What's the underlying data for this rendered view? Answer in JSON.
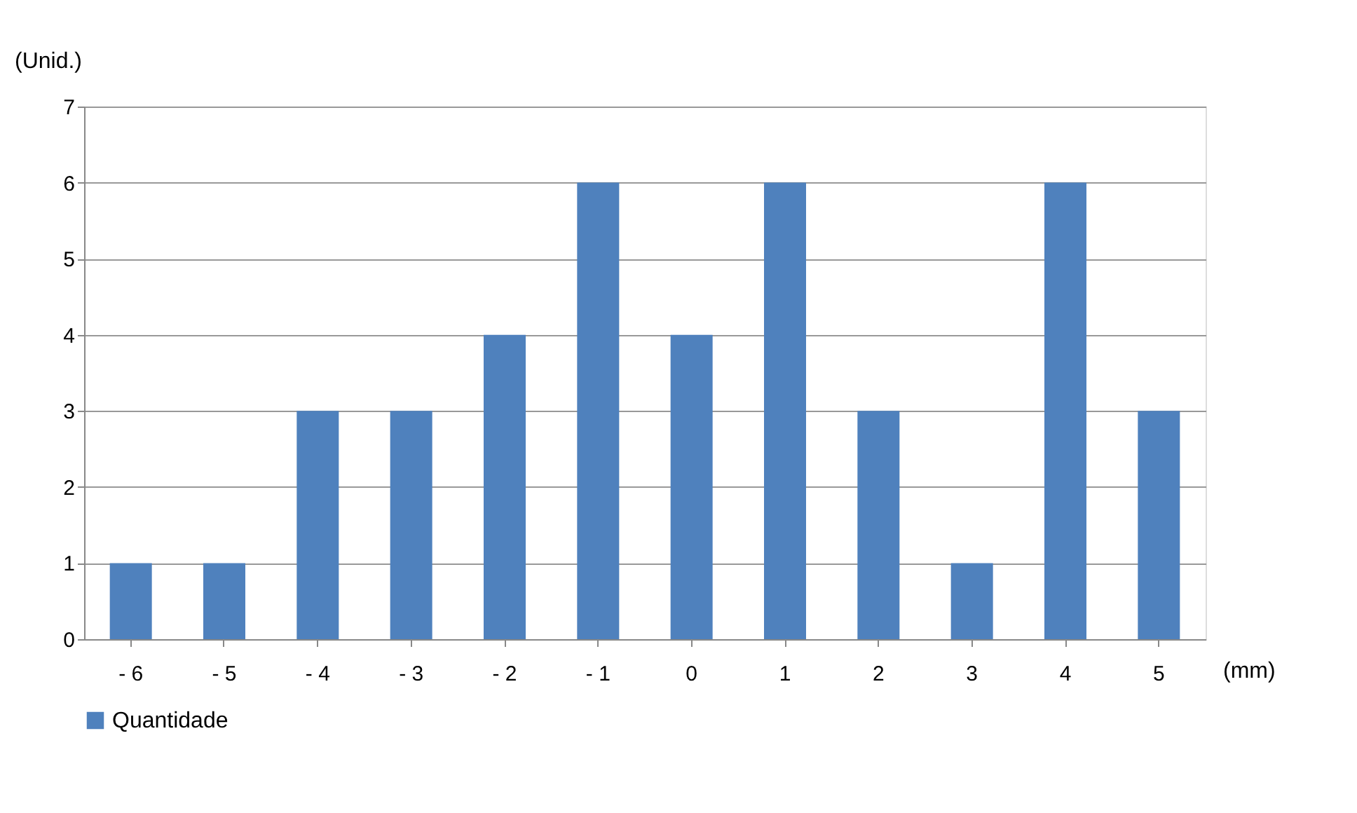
{
  "chart_data": {
    "type": "bar",
    "ylabel": "(Unid.)",
    "xlabel": "(mm)",
    "categories": [
      "- 6",
      "- 5",
      "- 4",
      "- 3",
      "- 2",
      "- 1",
      "0",
      "1",
      "2",
      "3",
      "4",
      "5"
    ],
    "series": [
      {
        "name": "Quantidade",
        "color": "#4f81bd",
        "values": [
          1,
          1,
          3,
          3,
          4,
          6,
          4,
          6,
          3,
          1,
          6,
          3
        ]
      }
    ],
    "ylim": [
      0,
      7
    ],
    "yticks": [
      0,
      1,
      2,
      3,
      4,
      5,
      6,
      7
    ],
    "grid": "y",
    "legend": "bottom"
  }
}
